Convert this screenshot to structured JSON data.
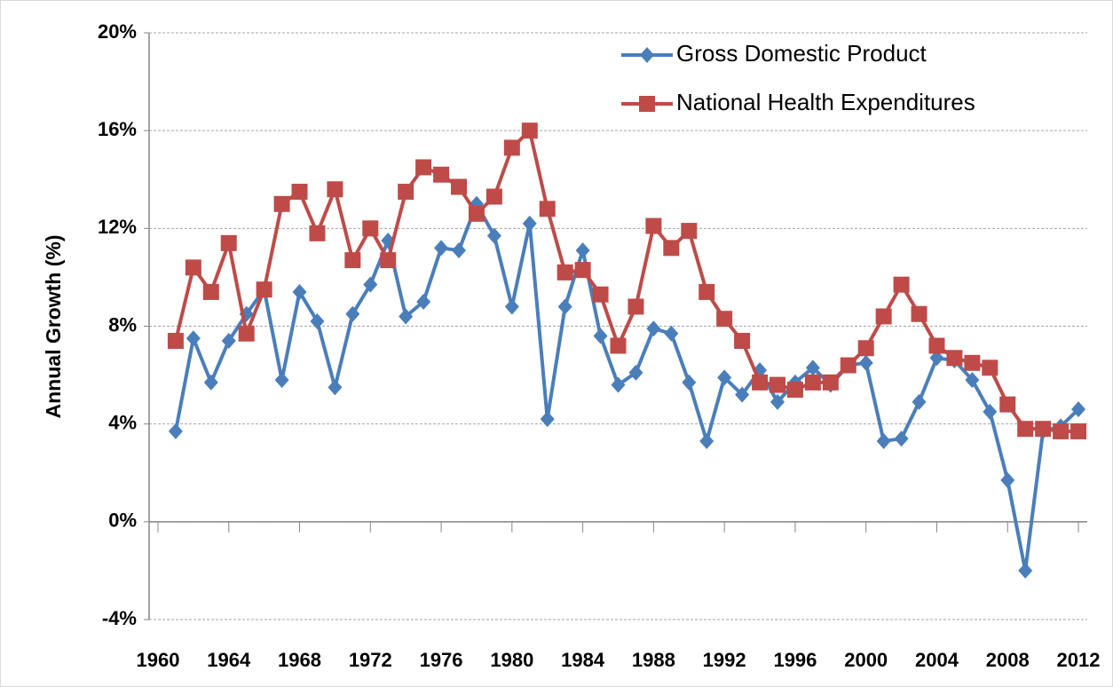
{
  "chart_data": {
    "type": "line",
    "y_label": "Annual Growth (%)",
    "x": [
      1961,
      1962,
      1963,
      1964,
      1965,
      1966,
      1967,
      1968,
      1969,
      1970,
      1971,
      1972,
      1973,
      1974,
      1975,
      1976,
      1977,
      1978,
      1979,
      1980,
      1981,
      1982,
      1983,
      1984,
      1985,
      1986,
      1987,
      1988,
      1989,
      1990,
      1991,
      1992,
      1993,
      1994,
      1995,
      1996,
      1997,
      1998,
      1999,
      2000,
      2001,
      2002,
      2003,
      2004,
      2005,
      2006,
      2007,
      2008,
      2009,
      2010,
      2011,
      2012
    ],
    "series": [
      {
        "name": "Gross Domestic Product",
        "color": "#4a7ebb",
        "marker": "diamond",
        "values": [
          3.7,
          7.5,
          5.7,
          7.4,
          8.5,
          9.5,
          5.8,
          9.4,
          8.2,
          5.5,
          8.5,
          9.7,
          11.5,
          8.4,
          9.0,
          11.2,
          11.1,
          13.0,
          11.7,
          8.8,
          12.2,
          4.2,
          8.8,
          11.1,
          7.6,
          5.6,
          6.1,
          7.9,
          7.7,
          5.7,
          3.3,
          5.9,
          5.2,
          6.2,
          4.9,
          5.7,
          6.3,
          5.6,
          6.4,
          6.5,
          3.3,
          3.4,
          4.9,
          6.7,
          6.6,
          5.8,
          4.5,
          1.7,
          -2.0,
          3.7,
          3.9,
          4.6
        ]
      },
      {
        "name": "National Health Expenditures",
        "color": "#be4b48",
        "marker": "square",
        "values": [
          7.4,
          10.4,
          9.4,
          11.4,
          7.7,
          9.5,
          13.0,
          13.5,
          11.8,
          13.6,
          10.7,
          12.0,
          10.7,
          13.5,
          14.5,
          14.2,
          13.7,
          12.6,
          13.3,
          15.3,
          16.0,
          12.8,
          10.2,
          10.3,
          9.3,
          7.2,
          8.8,
          12.1,
          11.2,
          11.9,
          9.4,
          8.3,
          7.4,
          5.7,
          5.6,
          5.4,
          5.7,
          5.7,
          6.4,
          7.1,
          8.4,
          9.7,
          8.5,
          7.2,
          6.7,
          6.5,
          6.3,
          4.8,
          3.8,
          3.8,
          3.7,
          3.7
        ]
      }
    ],
    "xlim": [
      1959.5,
      2012.5
    ],
    "xticks": [
      1960,
      1964,
      1968,
      1972,
      1976,
      1980,
      1984,
      1988,
      1992,
      1996,
      2000,
      2004,
      2008,
      2012
    ],
    "ylim": [
      -4,
      20
    ],
    "yticks": [
      {
        "value": -4,
        "label": "-4%"
      },
      {
        "value": 0,
        "label": "0%"
      },
      {
        "value": 4,
        "label": "4%"
      },
      {
        "value": 8,
        "label": "8%"
      },
      {
        "value": 12,
        "label": "12%"
      },
      {
        "value": 16,
        "label": "16%"
      },
      {
        "value": 20,
        "label": "20%"
      }
    ],
    "grid": true,
    "legend": "upper right"
  }
}
